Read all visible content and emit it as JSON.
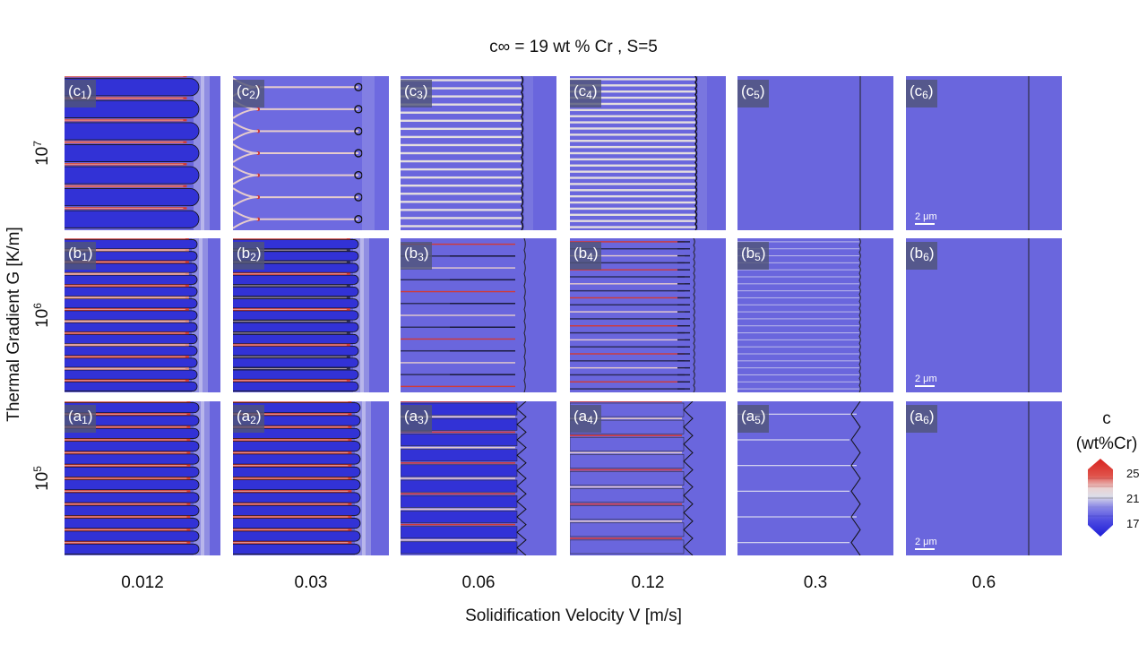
{
  "title": "c∞ = 19 wt % Cr , S=5",
  "x_axis_label": "Solidification Velocity V [m/s]",
  "y_axis_label": "Thermal Gradient G [K/m]",
  "velocities": [
    "0.012",
    "0.03",
    "0.06",
    "0.12",
    "0.3",
    "0.6"
  ],
  "rows": [
    {
      "gradient_base": "10",
      "gradient_exp": "7",
      "letter": "c"
    },
    {
      "gradient_base": "10",
      "gradient_exp": "6",
      "letter": "b"
    },
    {
      "gradient_base": "10",
      "gradient_exp": "5",
      "letter": "a"
    }
  ],
  "panel_label_digits": [
    "1",
    "2",
    "3",
    "4",
    "5",
    "6"
  ],
  "scale_bar": "2 μm",
  "colorbar": {
    "title_line1": "c",
    "title_line2": "(wt%Cr)",
    "ticks": [
      "25",
      "21",
      "17"
    ]
  },
  "colors": {
    "matrix": "#6a66dd",
    "deep_blue": "#3232d6",
    "red": "#d23a36",
    "light": "#e6cccc"
  }
}
